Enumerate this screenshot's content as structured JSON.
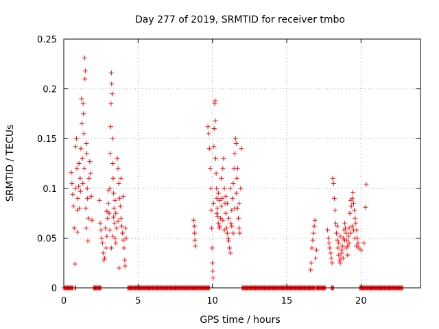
{
  "chart_data": {
    "type": "scatter",
    "title": "Day 277 of 2019, SRMTID for receiver tmbo",
    "xlabel": "GPS time / hours",
    "ylabel": "SRMTID / TECUs",
    "xlim": [
      0,
      24
    ],
    "ylim": [
      0,
      0.25
    ],
    "xticks": [
      0,
      5,
      10,
      15,
      20
    ],
    "xtick_labels": [
      "0",
      "5",
      "10",
      "15",
      "20"
    ],
    "yticks": [
      0,
      0.05,
      0.1,
      0.15,
      0.2,
      0.25
    ],
    "ytick_labels": [
      "0",
      "0.05",
      "0.1",
      "0.15",
      "0.2",
      "0.25"
    ],
    "grid": true,
    "marker": "+",
    "color": "#ff0000",
    "series": [
      {
        "name": "SRMTID",
        "points": [
          [
            0.5,
            0.116
          ],
          [
            0.55,
            0.105
          ],
          [
            0.6,
            0.094
          ],
          [
            0.65,
            0.082
          ],
          [
            0.7,
            0.06
          ],
          [
            0.75,
            0.024
          ],
          [
            0.78,
            0.1
          ],
          [
            0.8,
            0.142
          ],
          [
            0.85,
            0.15
          ],
          [
            0.88,
            0.12
          ],
          [
            0.9,
            0.078
          ],
          [
            0.92,
            0.056
          ],
          [
            0.95,
            0.09
          ],
          [
            1.0,
            0.102
          ],
          [
            1.02,
            0.125
          ],
          [
            1.05,
            0.08
          ],
          [
            1.1,
            0.11
          ],
          [
            1.12,
            0.097
          ],
          [
            1.15,
            0.14
          ],
          [
            1.2,
            0.19
          ],
          [
            1.22,
            0.165
          ],
          [
            1.25,
            0.13
          ],
          [
            1.28,
            0.105
          ],
          [
            1.3,
            0.185
          ],
          [
            1.33,
            0.175
          ],
          [
            1.35,
            0.155
          ],
          [
            1.38,
            0.12
          ],
          [
            1.4,
            0.231
          ],
          [
            1.42,
            0.21
          ],
          [
            1.45,
            0.218
          ],
          [
            1.48,
            0.08
          ],
          [
            1.5,
            0.06
          ],
          [
            1.52,
            0.145
          ],
          [
            1.55,
            0.135
          ],
          [
            1.58,
            0.1
          ],
          [
            1.6,
            0.09
          ],
          [
            1.62,
            0.047
          ],
          [
            1.65,
            0.07
          ],
          [
            1.7,
            0.11
          ],
          [
            1.75,
            0.127
          ],
          [
            1.8,
            0.115
          ],
          [
            1.85,
            0.092
          ],
          [
            1.9,
            0.068
          ],
          [
            2.4,
            0.088
          ],
          [
            2.45,
            0.065
          ],
          [
            2.5,
            0.058
          ],
          [
            2.55,
            0.05
          ],
          [
            2.6,
            0.045
          ],
          [
            2.65,
            0.035
          ],
          [
            2.7,
            0.028
          ],
          [
            2.75,
            0.03
          ],
          [
            2.8,
            0.06
          ],
          [
            2.85,
            0.04
          ],
          [
            2.9,
            0.052
          ],
          [
            2.95,
            0.07
          ],
          [
            3.0,
            0.085
          ],
          [
            3.05,
            0.075
          ],
          [
            3.1,
            0.1
          ],
          [
            3.12,
            0.135
          ],
          [
            3.15,
            0.162
          ],
          [
            3.18,
            0.185
          ],
          [
            3.2,
            0.216
          ],
          [
            3.22,
            0.205
          ],
          [
            3.25,
            0.195
          ],
          [
            3.28,
            0.15
          ],
          [
            3.3,
            0.125
          ],
          [
            3.32,
            0.11
          ],
          [
            3.35,
            0.095
          ],
          [
            3.38,
            0.08
          ],
          [
            3.4,
            0.065
          ],
          [
            3.45,
            0.05
          ],
          [
            3.5,
            0.045
          ],
          [
            3.55,
            0.06
          ],
          [
            3.6,
            0.13
          ],
          [
            3.65,
            0.12
          ],
          [
            3.7,
            0.105
          ],
          [
            3.72,
            0.02
          ],
          [
            3.75,
            0.09
          ],
          [
            3.8,
            0.082
          ],
          [
            3.85,
            0.07
          ],
          [
            3.9,
            0.062
          ],
          [
            3.95,
            0.055
          ],
          [
            4.0,
            0.048
          ],
          [
            4.05,
            0.04
          ],
          [
            4.1,
            0.028
          ],
          [
            4.12,
            0.022
          ],
          [
            4.15,
            0.06
          ],
          [
            4.2,
            0.05
          ],
          [
            3.45,
            0.088
          ],
          [
            3.35,
            0.071
          ],
          [
            2.9,
            0.077
          ],
          [
            3.0,
            0.098
          ],
          [
            3.1,
            0.058
          ],
          [
            3.2,
            0.04
          ],
          [
            3.3,
            0.052
          ],
          [
            3.5,
            0.075
          ],
          [
            3.65,
            0.067
          ],
          [
            3.85,
            0.11
          ],
          [
            4.0,
            0.092
          ],
          [
            8.75,
            0.068
          ],
          [
            8.78,
            0.062
          ],
          [
            8.8,
            0.055
          ],
          [
            8.82,
            0.048
          ],
          [
            8.85,
            0.042
          ],
          [
            9.7,
            0.162
          ],
          [
            9.75,
            0.155
          ],
          [
            9.8,
            0.14
          ],
          [
            9.85,
            0.12
          ],
          [
            9.9,
            0.1
          ],
          [
            9.92,
            0.078
          ],
          [
            9.95,
            0.06
          ],
          [
            9.98,
            0.04
          ],
          [
            10.0,
            0.025
          ],
          [
            10.02,
            0.017
          ],
          [
            10.05,
            0.01
          ],
          [
            10.08,
            0.085
          ],
          [
            10.1,
            0.142
          ],
          [
            10.12,
            0.16
          ],
          [
            10.15,
            0.185
          ],
          [
            10.18,
            0.188
          ],
          [
            10.2,
            0.168
          ],
          [
            10.22,
            0.13
          ],
          [
            10.25,
            0.115
          ],
          [
            10.28,
            0.1
          ],
          [
            10.3,
            0.09
          ],
          [
            10.32,
            0.08
          ],
          [
            10.35,
            0.072
          ],
          [
            10.4,
            0.065
          ],
          [
            10.45,
            0.06
          ],
          [
            10.5,
            0.062
          ],
          [
            10.55,
            0.07
          ],
          [
            10.6,
            0.082
          ],
          [
            10.65,
            0.09
          ],
          [
            10.7,
            0.12
          ],
          [
            10.75,
            0.13
          ],
          [
            10.8,
            0.1
          ],
          [
            10.85,
            0.085
          ],
          [
            10.9,
            0.075
          ],
          [
            10.95,
            0.06
          ],
          [
            11.0,
            0.055
          ],
          [
            11.05,
            0.05
          ],
          [
            11.1,
            0.047
          ],
          [
            11.15,
            0.04
          ],
          [
            11.2,
            0.035
          ],
          [
            11.25,
            0.065
          ],
          [
            11.3,
            0.078
          ],
          [
            11.35,
            0.09
          ],
          [
            11.4,
            0.105
          ],
          [
            11.45,
            0.12
          ],
          [
            11.5,
            0.135
          ],
          [
            11.55,
            0.15
          ],
          [
            11.6,
            0.145
          ],
          [
            11.65,
            0.11
          ],
          [
            11.7,
            0.08
          ],
          [
            11.75,
            0.07
          ],
          [
            11.8,
            0.06
          ],
          [
            11.85,
            0.055
          ],
          [
            11.9,
            0.1
          ],
          [
            11.95,
            0.14
          ],
          [
            10.3,
            0.075
          ],
          [
            10.4,
            0.095
          ],
          [
            10.5,
            0.088
          ],
          [
            10.6,
            0.11
          ],
          [
            10.7,
            0.068
          ],
          [
            10.8,
            0.058
          ],
          [
            10.9,
            0.092
          ],
          [
            11.0,
            0.085
          ],
          [
            11.1,
            0.07
          ],
          [
            11.2,
            0.1
          ],
          [
            11.3,
            0.062
          ],
          [
            11.4,
            0.055
          ],
          [
            11.5,
            0.08
          ],
          [
            11.6,
            0.095
          ],
          [
            11.7,
            0.12
          ],
          [
            11.8,
            0.085
          ],
          [
            16.6,
            0.018
          ],
          [
            16.65,
            0.025
          ],
          [
            16.7,
            0.04
          ],
          [
            16.75,
            0.048
          ],
          [
            16.8,
            0.055
          ],
          [
            16.85,
            0.062
          ],
          [
            16.9,
            0.068
          ],
          [
            16.95,
            0.03
          ],
          [
            17.0,
            0.038
          ],
          [
            17.75,
            0.058
          ],
          [
            17.8,
            0.05
          ],
          [
            17.85,
            0.045
          ],
          [
            17.9,
            0.04
          ],
          [
            17.95,
            0.035
          ],
          [
            18.0,
            0.03
          ],
          [
            18.05,
            0.025
          ],
          [
            18.1,
            0.11
          ],
          [
            18.15,
            0.105
          ],
          [
            18.2,
            0.09
          ],
          [
            18.25,
            0.078
          ],
          [
            18.3,
            0.065
          ],
          [
            18.35,
            0.055
          ],
          [
            18.4,
            0.048
          ],
          [
            18.45,
            0.04
          ],
          [
            18.5,
            0.033
          ],
          [
            18.55,
            0.028
          ],
          [
            18.6,
            0.025
          ],
          [
            18.65,
            0.03
          ],
          [
            18.7,
            0.035
          ],
          [
            18.75,
            0.042
          ],
          [
            18.8,
            0.05
          ],
          [
            18.85,
            0.058
          ],
          [
            18.9,
            0.065
          ],
          [
            18.95,
            0.06
          ],
          [
            19.0,
            0.055
          ],
          [
            19.05,
            0.048
          ],
          [
            19.1,
            0.042
          ],
          [
            19.15,
            0.052
          ],
          [
            19.2,
            0.06
          ],
          [
            19.25,
            0.075
          ],
          [
            19.3,
            0.088
          ],
          [
            19.35,
            0.082
          ],
          [
            19.4,
            0.09
          ],
          [
            19.45,
            0.096
          ],
          [
            19.5,
            0.085
          ],
          [
            19.55,
            0.078
          ],
          [
            19.6,
            0.07
          ],
          [
            19.65,
            0.065
          ],
          [
            19.7,
            0.058
          ],
          [
            19.75,
            0.05
          ],
          [
            19.8,
            0.045
          ],
          [
            19.85,
            0.04
          ],
          [
            20.0,
            0.038
          ],
          [
            20.2,
            0.045
          ],
          [
            20.3,
            0.081
          ],
          [
            20.35,
            0.104
          ],
          [
            18.4,
            0.062
          ],
          [
            18.5,
            0.045
          ],
          [
            18.6,
            0.052
          ],
          [
            18.7,
            0.038
          ],
          [
            18.8,
            0.03
          ],
          [
            18.9,
            0.048
          ],
          [
            19.0,
            0.04
          ],
          [
            19.1,
            0.033
          ],
          [
            19.2,
            0.045
          ],
          [
            19.3,
            0.055
          ],
          [
            19.4,
            0.062
          ],
          [
            19.5,
            0.058
          ],
          [
            19.6,
            0.05
          ],
          [
            19.7,
            0.042
          ]
        ]
      }
    ],
    "zero_segments": [
      [
        0.0,
        0.6
      ],
      [
        0.75,
        0.8
      ],
      [
        2.0,
        2.5
      ],
      [
        4.3,
        9.8
      ],
      [
        12.0,
        16.9
      ],
      [
        17.0,
        17.6
      ],
      [
        18.0,
        18.15
      ],
      [
        19.9,
        22.8
      ]
    ]
  }
}
